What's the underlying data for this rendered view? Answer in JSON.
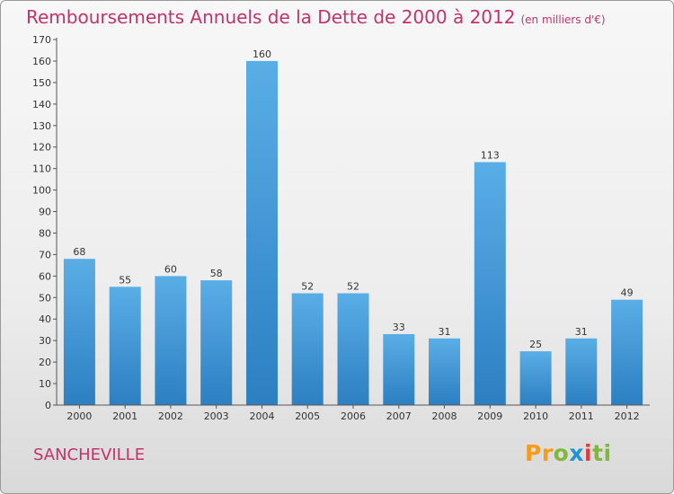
{
  "header": {
    "title": "Remboursements Annuels de la Dette de 2000 à 2012",
    "unit": "(en milliers d'€)"
  },
  "commune": "SANCHEVILLE",
  "logo": {
    "parts": [
      "Pr",
      "o",
      "x",
      "i",
      "ti"
    ]
  },
  "colors": {
    "bar_top": "#5aaee6",
    "bar_bottom": "#2c7fc1",
    "title": "#c0346a"
  },
  "chart_data": {
    "type": "bar",
    "title": "Remboursements Annuels de la Dette de 2000 à 2012",
    "categories": [
      "2000",
      "2001",
      "2002",
      "2003",
      "2004",
      "2005",
      "2006",
      "2007",
      "2008",
      "2009",
      "2010",
      "2011",
      "2012"
    ],
    "values": [
      68,
      55,
      60,
      58,
      160,
      52,
      52,
      33,
      31,
      113,
      25,
      31,
      49
    ],
    "xlabel": "",
    "ylabel": "",
    "ylim": [
      0,
      170
    ],
    "yticks": [
      0,
      10,
      20,
      30,
      40,
      50,
      60,
      70,
      80,
      90,
      100,
      110,
      120,
      130,
      140,
      150,
      160,
      170
    ],
    "grid": false,
    "legend": "none"
  }
}
